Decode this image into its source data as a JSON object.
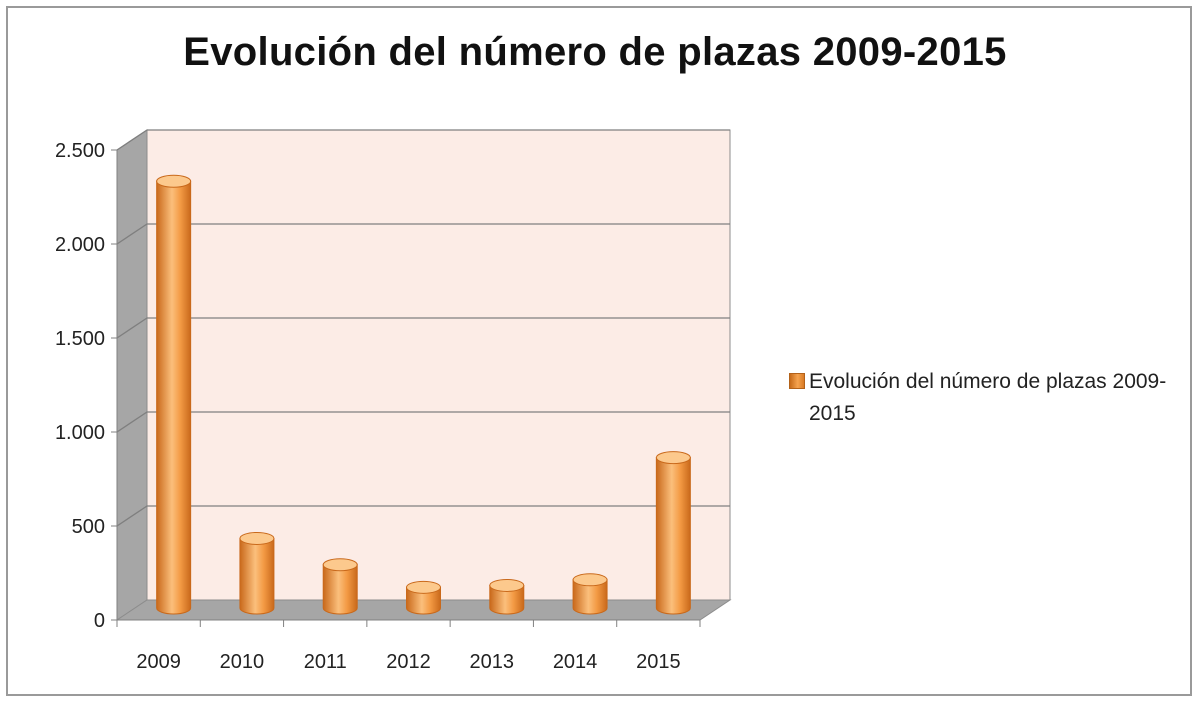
{
  "chart_data": {
    "type": "bar",
    "title": "Evolución del número de plazas 2009-2015",
    "categories": [
      "2009",
      "2010",
      "2011",
      "2012",
      "2013",
      "2014",
      "2015"
    ],
    "series": [
      {
        "name": "Evolución del número de plazas 2009-2015",
        "values": [
          2270,
          370,
          230,
          110,
          120,
          150,
          800
        ]
      }
    ],
    "ylim": [
      0,
      2500
    ],
    "yticks": [
      0,
      500,
      1000,
      1500,
      2000,
      2500
    ],
    "ytick_labels": [
      "0",
      "500",
      "1.000",
      "1.500",
      "2.000",
      "2.500"
    ],
    "grid": true,
    "legend_position": "right",
    "style": "3d-cylinder",
    "colors": {
      "bar": "#f39a44",
      "bar_dark": "#c9691b",
      "bar_light": "#fcc98d",
      "back_wall": "#fcece6",
      "side_wall": "#a6a6a6",
      "floor": "#a6a6a6",
      "grid": "#7f7f7f"
    }
  }
}
